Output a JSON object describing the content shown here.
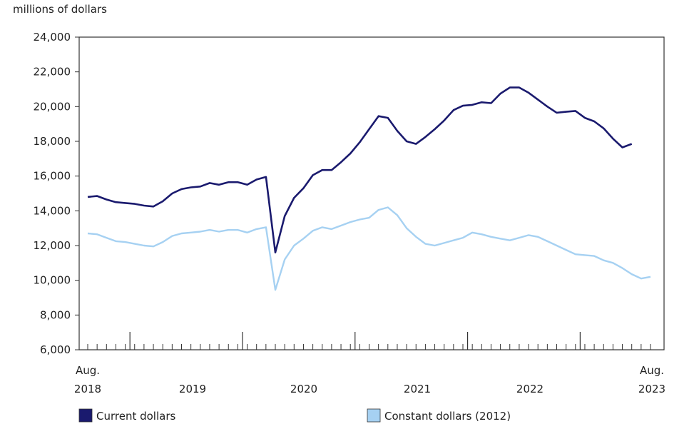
{
  "chart_data": {
    "type": "line",
    "ylabel": "millions of dollars",
    "ylim": [
      6000,
      24000
    ],
    "yticks": [
      "24,000",
      "22,000",
      "20,000",
      "18,000",
      "16,000",
      "14,000",
      "12,000",
      "10,000",
      "8,000",
      "6,000"
    ],
    "x": [
      "2018-08",
      "2018-09",
      "2018-10",
      "2018-11",
      "2018-12",
      "2019-01",
      "2019-02",
      "2019-03",
      "2019-04",
      "2019-05",
      "2019-06",
      "2019-07",
      "2019-08",
      "2019-09",
      "2019-10",
      "2019-11",
      "2019-12",
      "2020-01",
      "2020-02",
      "2020-03",
      "2020-04",
      "2020-05",
      "2020-06",
      "2020-07",
      "2020-08",
      "2020-09",
      "2020-10",
      "2020-11",
      "2020-12",
      "2021-01",
      "2021-02",
      "2021-03",
      "2021-04",
      "2021-05",
      "2021-06",
      "2021-07",
      "2021-08",
      "2021-09",
      "2021-10",
      "2021-11",
      "2021-12",
      "2022-01",
      "2022-02",
      "2022-03",
      "2022-04",
      "2022-05",
      "2022-06",
      "2022-07",
      "2022-08",
      "2022-09",
      "2022-10",
      "2022-11",
      "2022-12",
      "2023-01",
      "2023-02",
      "2023-03",
      "2023-04",
      "2023-05",
      "2023-06",
      "2023-07",
      "2023-08"
    ],
    "x_axis_labels": [
      {
        "line1": "Aug.",
        "line2": "2018"
      },
      {
        "line1": "",
        "line2": "2019"
      },
      {
        "line1": "",
        "line2": "2020"
      },
      {
        "line1": "",
        "line2": "2021"
      },
      {
        "line1": "",
        "line2": "2022"
      },
      {
        "line1": "Aug.",
        "line2": "2023"
      }
    ],
    "series": [
      {
        "name": "Current dollars",
        "color": "#1a1a6e",
        "values": [
          14800,
          14850,
          14650,
          14500,
          14450,
          14400,
          14300,
          14250,
          14550,
          15000,
          15250,
          15350,
          15400,
          15600,
          15500,
          15650,
          15650,
          15500,
          15800,
          15950,
          11600,
          13700,
          14750,
          15300,
          16050,
          16350,
          16350,
          16800,
          17300,
          17950,
          18700,
          19450,
          19350,
          18600,
          18000,
          17850,
          18250,
          18700,
          19200,
          19800,
          20050,
          20100,
          20250,
          20200,
          20750,
          21100,
          21100,
          20800,
          20400,
          20000,
          19650,
          19700,
          19750,
          19350,
          19150,
          18750,
          18150,
          17650,
          17850,
          null,
          null
        ]
      },
      {
        "name": "Constant dollars (2012)",
        "color": "#a6d1f2",
        "values": [
          12700,
          12650,
          12450,
          12250,
          12200,
          12100,
          12000,
          11950,
          12200,
          12550,
          12700,
          12750,
          12800,
          12900,
          12800,
          12900,
          12900,
          12750,
          12950,
          13050,
          9450,
          11200,
          12000,
          12400,
          12850,
          13050,
          12950,
          13150,
          13350,
          13500,
          13600,
          14050,
          14200,
          13750,
          13000,
          12500,
          12100,
          12000,
          12150,
          12300,
          12450,
          12750,
          12650,
          12500,
          12400,
          12300,
          12450,
          12600,
          12500,
          12250,
          12000,
          11750,
          11500,
          11450,
          11400,
          11150,
          11000,
          10700,
          10350,
          10100,
          10200
        ]
      }
    ],
    "grid": false,
    "legend_position": "bottom"
  }
}
